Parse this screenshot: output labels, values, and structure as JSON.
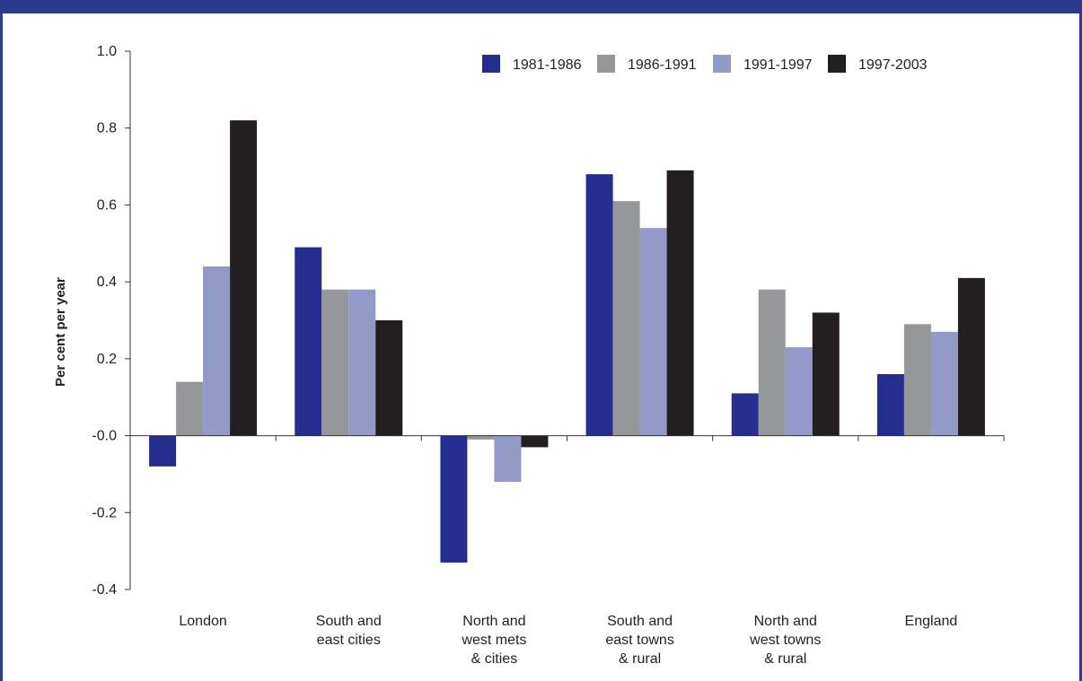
{
  "chart_data": {
    "type": "bar",
    "ylabel": "Per cent per year",
    "ylim": [
      -0.4,
      1.0
    ],
    "yticks": [
      "1.0",
      "0.8",
      "0.6",
      "0.4",
      "0.2",
      "-0.0",
      "-0.2",
      "-0.4"
    ],
    "categories": [
      [
        "London"
      ],
      [
        "South and",
        "east cities"
      ],
      [
        "North and",
        "west mets",
        "& cities"
      ],
      [
        "South and",
        "east towns",
        "& rural"
      ],
      [
        "North and",
        "west towns",
        "& rural"
      ],
      [
        "England"
      ]
    ],
    "series": [
      {
        "name": "1981-1986",
        "color": "#252e8e",
        "values": [
          -0.08,
          0.49,
          -0.33,
          0.68,
          0.11,
          0.16
        ]
      },
      {
        "name": "1986-1991",
        "color": "#96979a",
        "values": [
          0.14,
          0.38,
          -0.01,
          0.61,
          0.38,
          0.29
        ]
      },
      {
        "name": "1991-1997",
        "color": "#9399c9",
        "values": [
          0.44,
          0.38,
          -0.12,
          0.54,
          0.23,
          0.27
        ]
      },
      {
        "name": "1997-2003",
        "color": "#231f20",
        "values": [
          0.82,
          0.3,
          -0.03,
          0.69,
          0.32,
          0.41
        ]
      }
    ],
    "legend": "top-right",
    "grid": false
  }
}
